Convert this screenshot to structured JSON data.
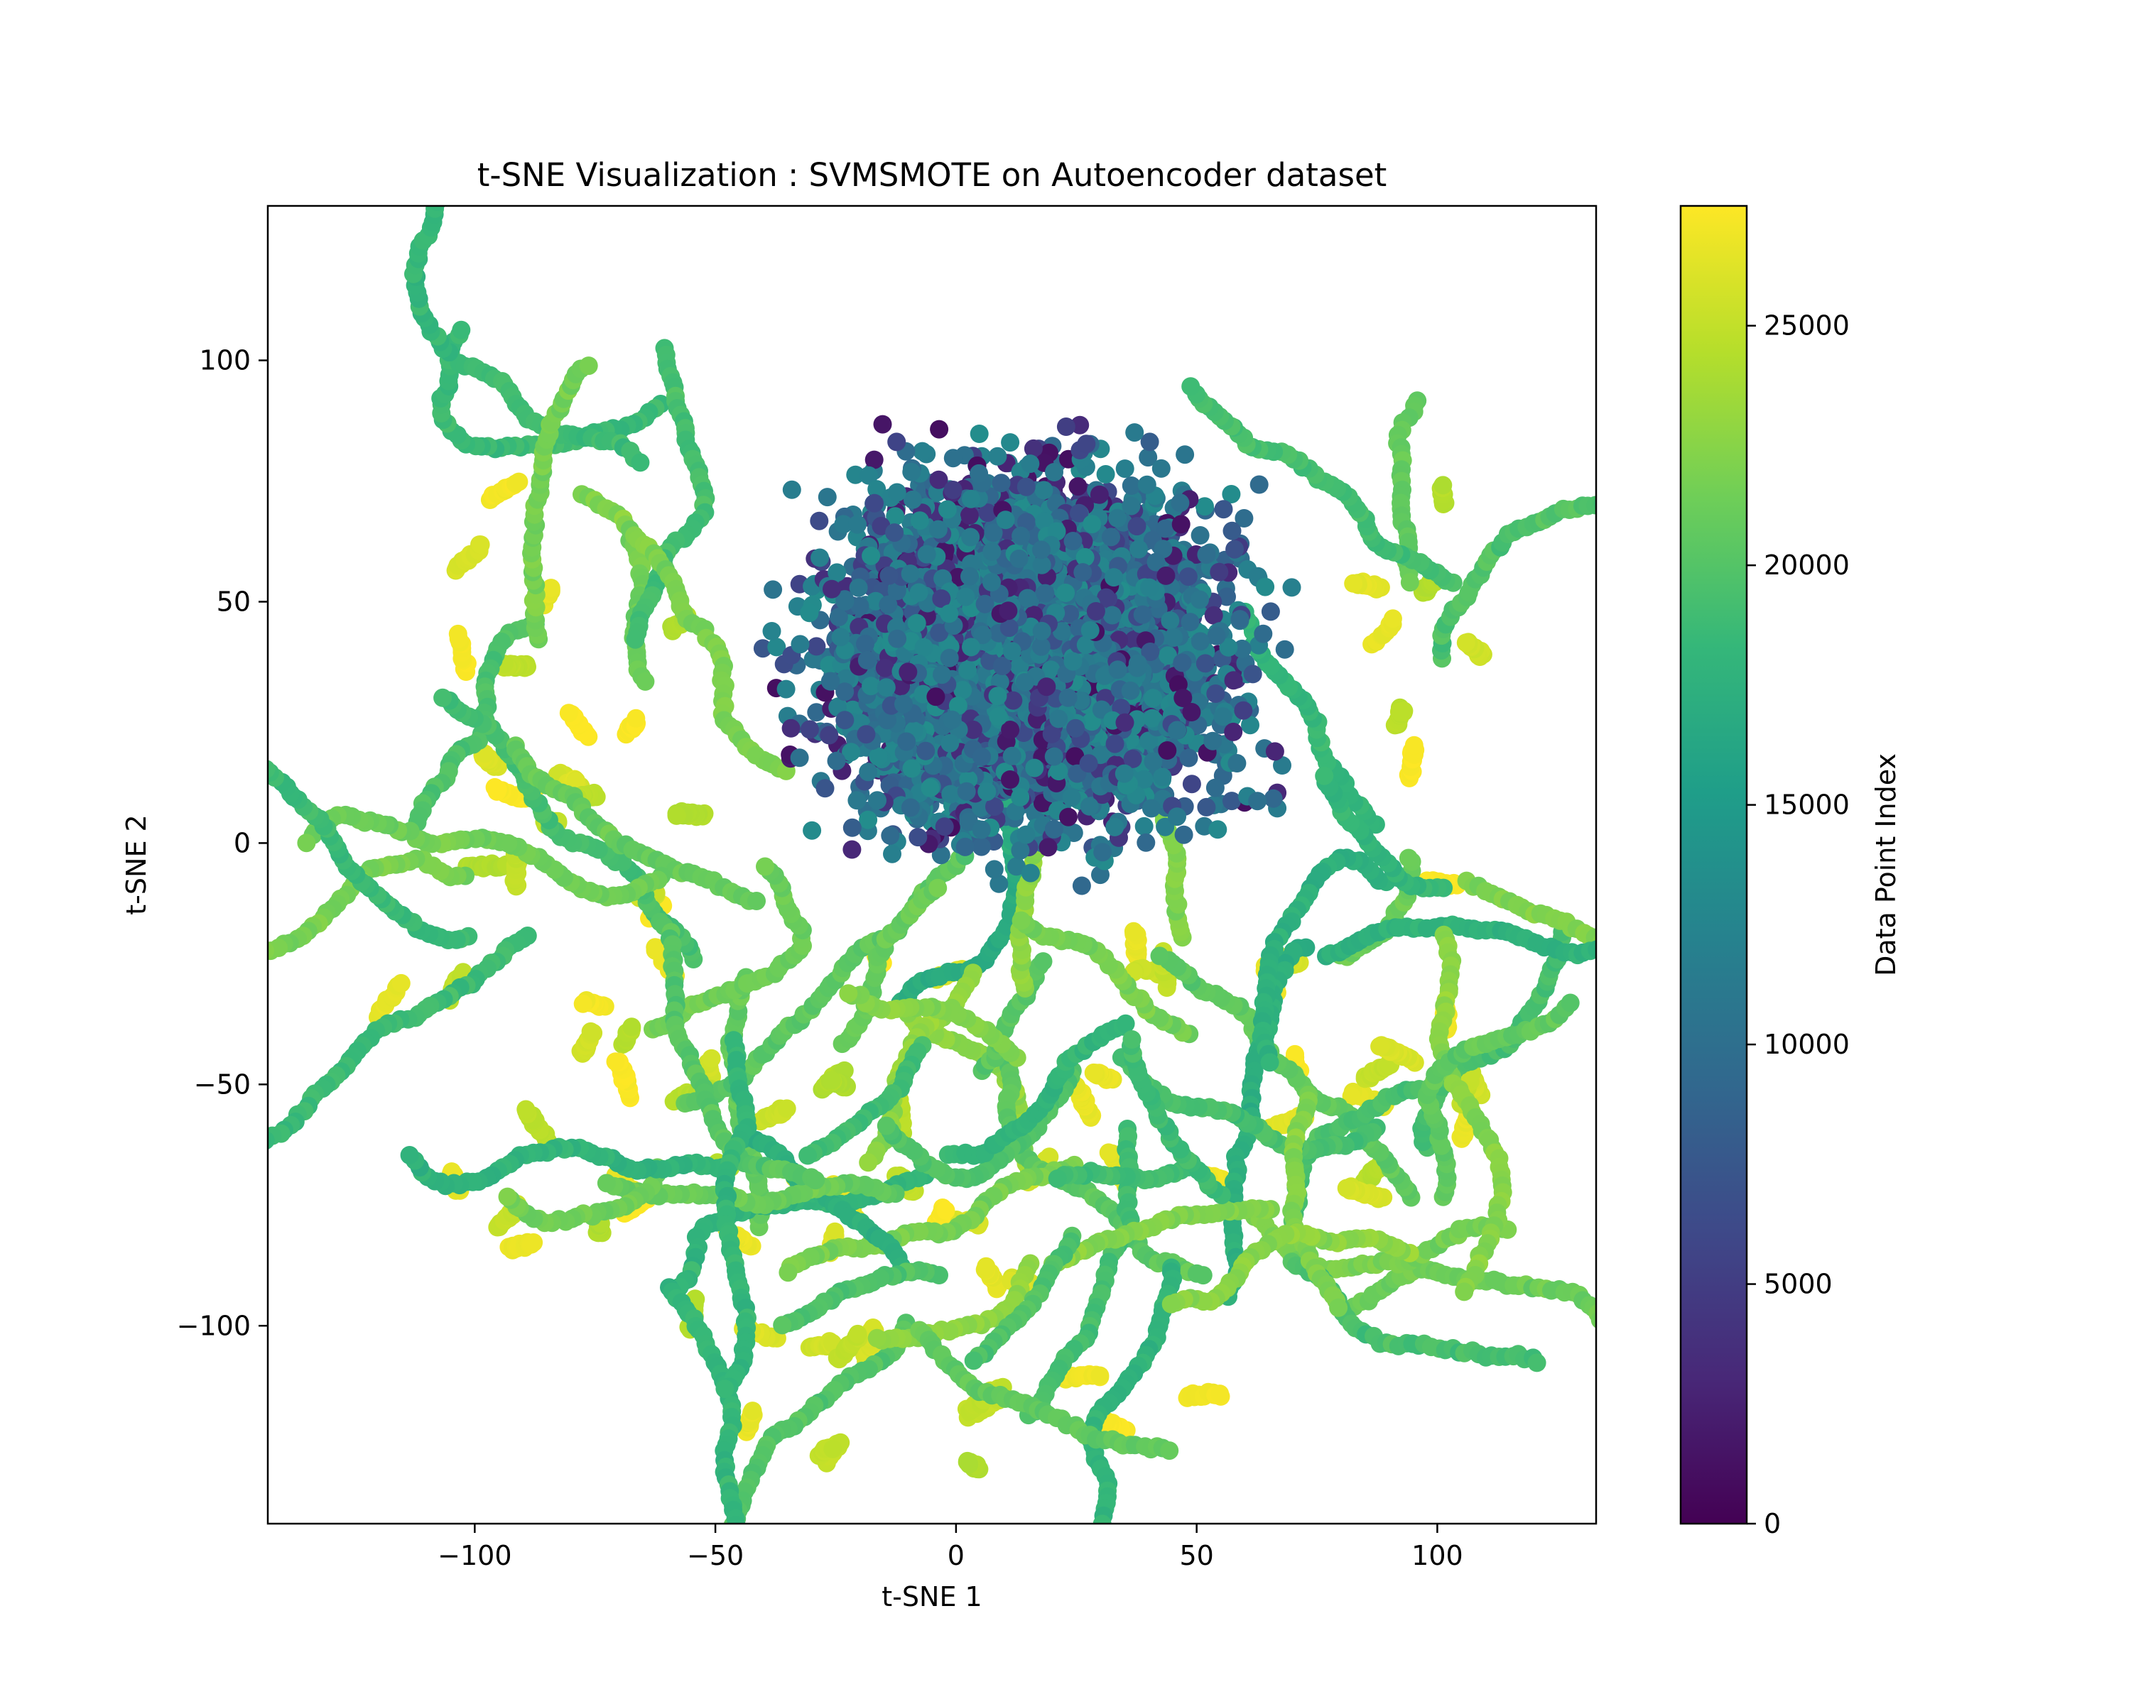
{
  "chart_data": {
    "type": "scatter",
    "title": "t-SNE Visualization : SVMSMOTE on Autoencoder dataset",
    "xlabel": "t-SNE 1",
    "ylabel": "t-SNE 2",
    "xlim": [
      -143,
      133
    ],
    "ylim": [
      -141,
      132
    ],
    "xticks": [
      -100,
      -50,
      0,
      50,
      100
    ],
    "xtick_labels": [
      "−100",
      "−50",
      "0",
      "50",
      "100"
    ],
    "yticks": [
      -100,
      -50,
      0,
      50,
      100
    ],
    "ytick_labels": [
      "−100",
      "−50",
      "0",
      "50",
      "100"
    ],
    "grid": false,
    "colorbar": {
      "label": "Data Point Index",
      "colormap": "viridis",
      "range": [
        0,
        27500
      ],
      "ticks": [
        0,
        5000,
        10000,
        15000,
        20000,
        25000
      ],
      "tick_labels": [
        "0",
        "5000",
        "10000",
        "15000",
        "20000",
        "25000"
      ]
    },
    "colormap_stops": [
      "#440154",
      "#482878",
      "#3e4989",
      "#31688e",
      "#26828e",
      "#1f9e89",
      "#35b779",
      "#6ece58",
      "#b5de2b",
      "#fde725"
    ],
    "clusters": [
      {
        "region": "dense core",
        "x_range": [
          -55,
          85
        ],
        "y_range": [
          -20,
          102
        ],
        "index_range": [
          0,
          13000
        ],
        "approx_points": 6000
      },
      {
        "region": "green chains",
        "x_range": [
          -70,
          110
        ],
        "y_range": [
          -100,
          115
        ],
        "index_range": [
          17000,
          23000
        ],
        "approx_points": 3000
      },
      {
        "region": "yellow fragments",
        "x_range": [
          -130,
          120
        ],
        "y_range": [
          -130,
          75
        ],
        "index_range": [
          24000,
          27500
        ],
        "approx_points": 1500
      }
    ]
  }
}
